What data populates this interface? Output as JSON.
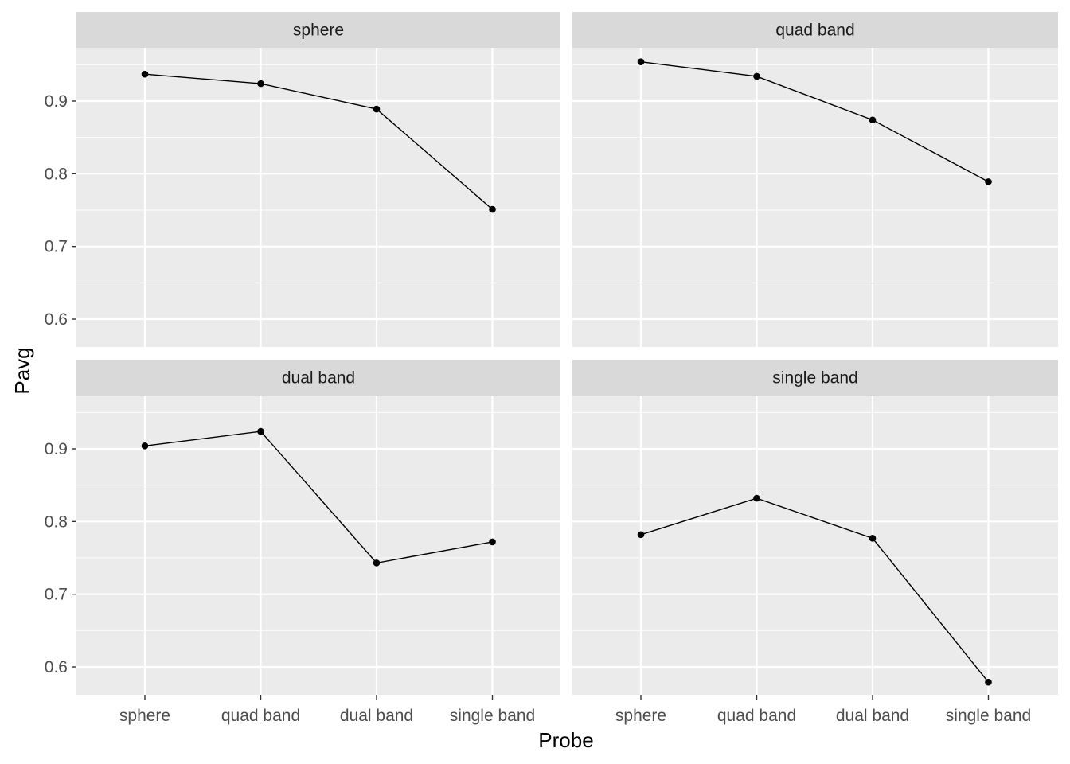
{
  "chart_data": {
    "type": "line",
    "xlabel": "Probe",
    "ylabel": "Pavg",
    "categories": [
      "sphere",
      "quad band",
      "dual band",
      "single band"
    ],
    "y_ticks": [
      0.6,
      0.7,
      0.8,
      0.9
    ],
    "y_tick_labels": [
      "0.6",
      "0.7",
      "0.8",
      "0.9"
    ],
    "ylim": [
      0.56,
      0.97
    ],
    "grid": true,
    "legend": "none",
    "colors": {
      "panel_bg": "#ebebeb",
      "strip_bg": "#d9d9d9",
      "grid_major": "#ffffff",
      "line": "#000000",
      "point": "#000000"
    },
    "facets": [
      {
        "title": "sphere",
        "values": [
          0.937,
          0.924,
          0.889,
          0.751
        ]
      },
      {
        "title": "quad band",
        "values": [
          0.954,
          0.934,
          0.874,
          0.789
        ]
      },
      {
        "title": "dual band",
        "values": [
          0.904,
          0.924,
          0.743,
          0.772
        ]
      },
      {
        "title": "single band",
        "values": [
          0.782,
          0.832,
          0.777,
          0.579
        ]
      }
    ]
  }
}
